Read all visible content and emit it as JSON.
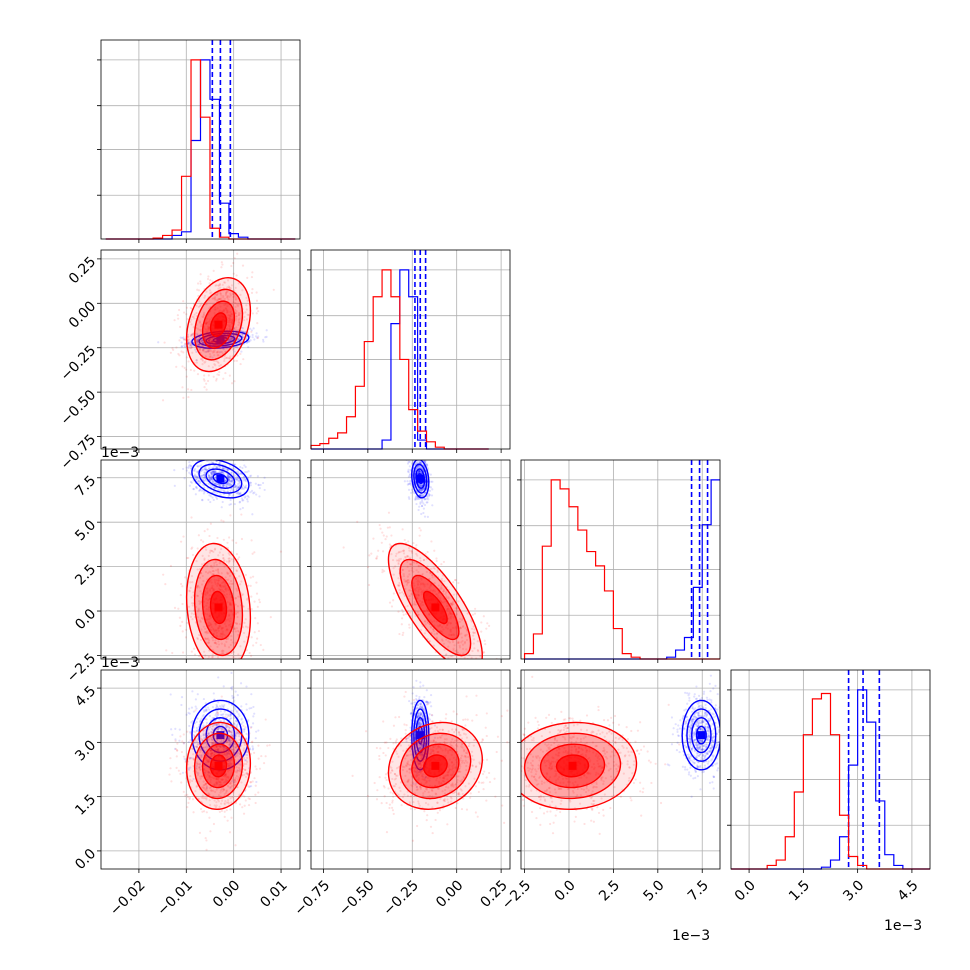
{
  "figure": {
    "background": "#ffffff"
  },
  "colors": {
    "series_a": "#0000ff",
    "series_b": "#ff0000",
    "grid": "#b0b0b0"
  },
  "chart_data": {
    "type": "corner-plot",
    "grid": true,
    "parameters": [
      {
        "range": [
          -0.028,
          0.014
        ],
        "ticks": [
          -0.02,
          -0.01,
          0.0,
          0.01
        ],
        "tick_labels": [
          "−0.02",
          "−0.01",
          "0.00",
          "0.01"
        ],
        "offset_text": ""
      },
      {
        "range": [
          -0.82,
          0.3
        ],
        "ticks": [
          -0.75,
          -0.5,
          -0.25,
          0.0,
          0.25
        ],
        "tick_labels": [
          "−0.75",
          "−0.50",
          "−0.25",
          "0.00",
          "0.25"
        ],
        "offset_text": ""
      },
      {
        "range": [
          -2.7,
          8.5
        ],
        "ticks": [
          -2.5,
          0.0,
          2.5,
          5.0,
          7.5
        ],
        "tick_labels": [
          "−2.5",
          "0.0",
          "2.5",
          "5.0",
          "7.5"
        ],
        "offset_text": "1e−3"
      },
      {
        "range": [
          -0.5,
          5.0
        ],
        "ticks": [
          0.0,
          1.5,
          3.0,
          4.5
        ],
        "tick_labels": [
          "0.0",
          "1.5",
          "3.0",
          "4.5"
        ],
        "offset_text": "1e−3"
      }
    ],
    "series": [
      {
        "color": "#0000ff",
        "quantiles": [
          [
            -0.0045,
            -0.0028,
            -0.0007
          ],
          [
            -0.235,
            -0.205,
            -0.175
          ],
          [
            6.9,
            7.35,
            7.8
          ],
          [
            2.75,
            3.15,
            3.6
          ]
        ],
        "histograms": [
          {
            "start": -0.027,
            "step": 0.002,
            "values": [
              0,
              0,
              0,
              0,
              0,
              0,
              0,
              0.02,
              0.04,
              0.55,
              1.0,
              0.78,
              0.2,
              0.03,
              0.01,
              0,
              0,
              0,
              0,
              0
            ]
          },
          {
            "start": -0.82,
            "step": 0.05,
            "values": [
              0,
              0,
              0,
              0,
              0,
              0,
              0,
              0,
              0.05,
              0.7,
              1.0,
              0.85,
              0.05,
              0,
              0,
              0,
              0,
              0,
              0,
              0
            ]
          },
          {
            "start": -2.5,
            "step": 0.5,
            "values": [
              0,
              0,
              0,
              0,
              0,
              0,
              0,
              0,
              0,
              0,
              0,
              0,
              0,
              0,
              0,
              0,
              0.01,
              0.05,
              0.12,
              0.4,
              0.75,
              1.0
            ]
          },
          {
            "start": -0.5,
            "step": 0.25,
            "values": [
              0,
              0,
              0,
              0,
              0,
              0,
              0,
              0,
              0,
              0,
              0.01,
              0.05,
              0.18,
              0.58,
              1.0,
              0.82,
              0.38,
              0.08,
              0.02,
              0,
              0,
              0
            ]
          }
        ],
        "centers": [
          [
            -0.0028,
            -0.205,
            7.45,
            3.2
          ]
        ],
        "sigmas": [
          0.0025,
          0.02,
          0.45,
          0.4
        ],
        "correlations": [
          [
            0,
            1,
            0.25
          ],
          [
            0,
            2,
            -0.35
          ],
          [
            1,
            2,
            -0.2
          ],
          [
            0,
            3,
            0.0
          ],
          [
            1,
            3,
            0.0
          ],
          [
            2,
            3,
            0.0
          ]
        ]
      },
      {
        "color": "#ff0000",
        "histograms": [
          {
            "start": -0.027,
            "step": 0.002,
            "values": [
              0,
              0,
              0,
              0,
              0,
              0.005,
              0.02,
              0.05,
              0.35,
              1.0,
              0.68,
              0.06,
              0.01,
              0,
              0,
              0,
              0,
              0,
              0,
              0
            ]
          },
          {
            "start": -0.82,
            "step": 0.05,
            "values": [
              0.02,
              0.03,
              0.06,
              0.09,
              0.18,
              0.35,
              0.6,
              0.85,
              1.0,
              0.85,
              0.5,
              0.22,
              0.1,
              0.04,
              0.01,
              0,
              0,
              0,
              0,
              0
            ]
          },
          {
            "start": -2.5,
            "step": 0.5,
            "values": [
              0.03,
              0.14,
              0.63,
              1.0,
              0.95,
              0.85,
              0.72,
              0.6,
              0.52,
              0.38,
              0.17,
              0.03,
              0.01,
              0,
              0,
              0,
              0,
              0,
              0,
              0,
              0,
              0
            ]
          },
          {
            "start": -0.5,
            "step": 0.25,
            "values": [
              0,
              0,
              0,
              0,
              0.02,
              0.05,
              0.18,
              0.43,
              0.75,
              0.95,
              0.98,
              0.75,
              0.3,
              0.07,
              0.02,
              0,
              0,
              0,
              0,
              0,
              0,
              0
            ]
          }
        ],
        "centers": [
          [
            -0.0032,
            -0.12,
            0.2,
            2.35
          ]
        ],
        "sigmas": [
          0.0028,
          0.11,
          1.5,
          0.5
        ],
        "correlations": [
          [
            0,
            1,
            0.3
          ],
          [
            0,
            2,
            -0.15
          ],
          [
            1,
            2,
            -0.75
          ],
          [
            0,
            3,
            0.05
          ],
          [
            1,
            3,
            0.15
          ],
          [
            2,
            3,
            0.05
          ]
        ]
      }
    ]
  }
}
